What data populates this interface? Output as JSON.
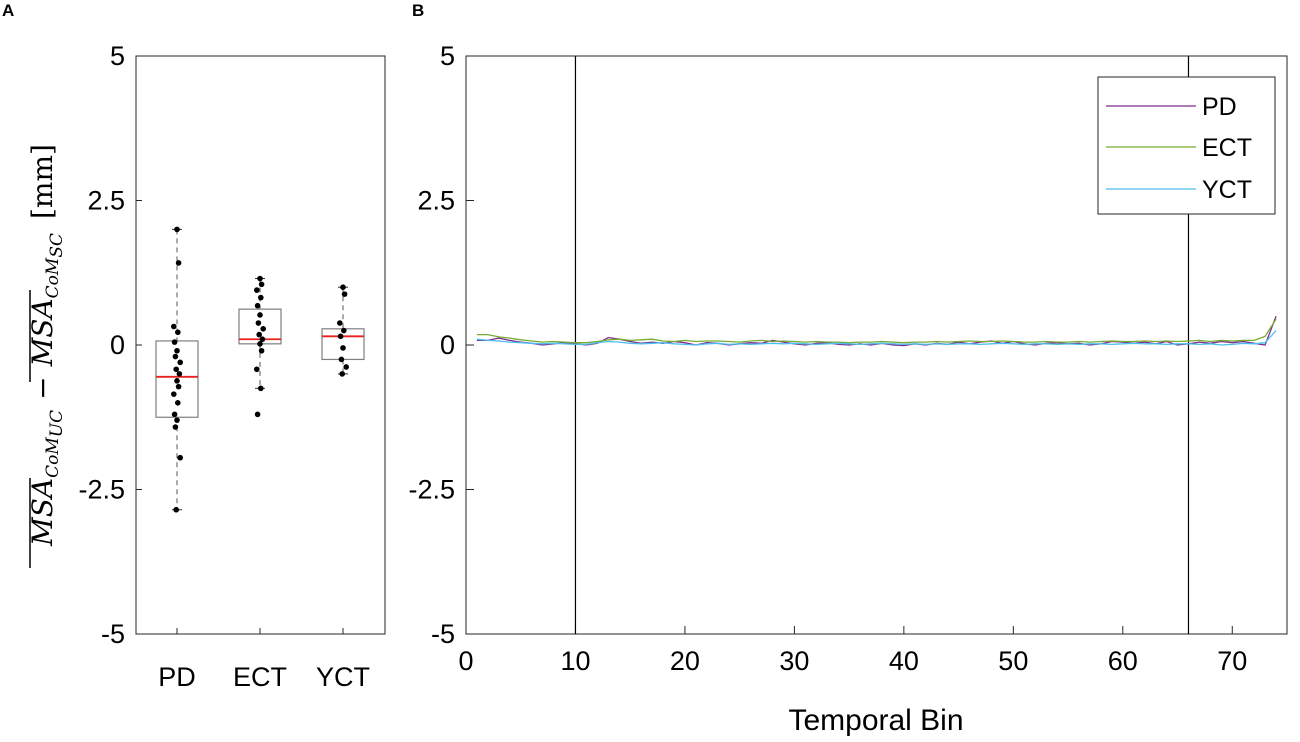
{
  "chart_data": [
    {
      "panel": "A",
      "type": "box",
      "categories": [
        "PD",
        "ECT",
        "YCT"
      ],
      "ylim": [
        -5,
        5
      ],
      "yticks": [
        -5,
        -2.5,
        0,
        2.5,
        5
      ],
      "ytick_labels": [
        "-5",
        "-2.5",
        "0",
        "2.5",
        "5"
      ],
      "ylabel": {
        "term1": "MSA",
        "sub1": "CoM",
        "subsub1": "UC",
        "minus": "−",
        "term2": "MSA",
        "sub2": "CoM",
        "subsub2": "SC",
        "unit": "[mm]"
      },
      "boxes": [
        {
          "name": "PD",
          "q1": -1.25,
          "median": -0.55,
          "q3": 0.07,
          "whisker_low": -2.85,
          "whisker_high": 2.0,
          "points": [
            2.0,
            1.42,
            0.32,
            0.22,
            0.05,
            -0.1,
            -0.2,
            -0.3,
            -0.42,
            -0.5,
            -0.62,
            -0.72,
            -0.85,
            -1.0,
            -1.2,
            -1.3,
            -1.42,
            -1.95,
            -2.85
          ]
        },
        {
          "name": "ECT",
          "q1": 0.02,
          "median": 0.1,
          "q3": 0.62,
          "whisker_low": -0.75,
          "whisker_high": 1.15,
          "points": [
            1.15,
            1.05,
            0.95,
            0.82,
            0.68,
            0.52,
            0.38,
            0.28,
            0.18,
            0.1,
            0.02,
            -0.1,
            -0.42,
            -0.75,
            -1.2
          ]
        },
        {
          "name": "YCT",
          "q1": -0.25,
          "median": 0.15,
          "q3": 0.28,
          "whisker_low": -0.5,
          "whisker_high": 1.0,
          "points": [
            1.0,
            0.88,
            0.38,
            0.25,
            0.15,
            -0.05,
            -0.25,
            -0.38,
            -0.5
          ]
        }
      ],
      "colors": {
        "box": "#7f7f7f",
        "median": "#e8211c",
        "points": "#000000",
        "whisker": "#555555"
      }
    },
    {
      "panel": "B",
      "type": "line",
      "xlabel": "Temporal Bin",
      "xlim": [
        0,
        75
      ],
      "ylim": [
        -5,
        5
      ],
      "xticks": [
        0,
        10,
        20,
        30,
        40,
        50,
        60,
        70
      ],
      "xtick_labels": [
        "0",
        "10",
        "20",
        "30",
        "40",
        "50",
        "60",
        "70"
      ],
      "yticks": [
        -5,
        -2.5,
        0,
        2.5,
        5
      ],
      "ytick_labels": [
        "-5",
        "-2.5",
        "0",
        "2.5",
        "5"
      ],
      "vlines": [
        10,
        66
      ],
      "legend_position": "top-right",
      "series": [
        {
          "name": "PD",
          "color": "#7e2f8e",
          "x": [
            1,
            2,
            3,
            4,
            5,
            6,
            7,
            8,
            9,
            10,
            11,
            12,
            13,
            14,
            15,
            16,
            17,
            18,
            19,
            20,
            21,
            22,
            23,
            24,
            25,
            26,
            27,
            28,
            29,
            30,
            31,
            32,
            33,
            34,
            35,
            36,
            37,
            38,
            39,
            40,
            41,
            42,
            43,
            44,
            45,
            46,
            47,
            48,
            49,
            50,
            51,
            52,
            53,
            54,
            55,
            56,
            57,
            58,
            59,
            60,
            61,
            62,
            63,
            64,
            65,
            66,
            67,
            68,
            69,
            70,
            71,
            72,
            73,
            74
          ],
          "y": [
            0.08,
            0.08,
            0.12,
            0.08,
            0.05,
            0.03,
            0.0,
            0.02,
            0.04,
            0.02,
            0.0,
            0.03,
            0.13,
            0.1,
            0.06,
            0.03,
            0.05,
            0.03,
            0.06,
            0.04,
            0.0,
            0.04,
            0.03,
            0.0,
            0.02,
            0.04,
            0.03,
            0.08,
            0.05,
            0.02,
            0.0,
            0.03,
            0.04,
            0.01,
            0.0,
            0.02,
            0.0,
            0.03,
            0.0,
            -0.01,
            0.02,
            0.0,
            0.03,
            0.01,
            0.05,
            0.02,
            0.05,
            0.07,
            0.03,
            0.06,
            0.02,
            0.0,
            0.03,
            0.04,
            0.02,
            0.03,
            0.0,
            0.02,
            0.06,
            0.05,
            0.03,
            0.05,
            0.02,
            0.06,
            0.0,
            0.02,
            0.05,
            0.03,
            0.06,
            0.04,
            0.06,
            0.03,
            0.0,
            0.5
          ]
        },
        {
          "name": "ECT",
          "color": "#77ac30",
          "x": [
            1,
            2,
            3,
            4,
            5,
            6,
            7,
            8,
            9,
            10,
            11,
            12,
            13,
            14,
            15,
            16,
            17,
            18,
            19,
            20,
            21,
            22,
            23,
            24,
            25,
            26,
            27,
            28,
            29,
            30,
            31,
            32,
            33,
            34,
            35,
            36,
            37,
            38,
            39,
            40,
            41,
            42,
            43,
            44,
            45,
            46,
            47,
            48,
            49,
            50,
            51,
            52,
            53,
            54,
            55,
            56,
            57,
            58,
            59,
            60,
            61,
            62,
            63,
            64,
            65,
            66,
            67,
            68,
            69,
            70,
            71,
            72,
            73,
            74
          ],
          "y": [
            0.18,
            0.18,
            0.14,
            0.12,
            0.09,
            0.07,
            0.05,
            0.06,
            0.05,
            0.04,
            0.04,
            0.06,
            0.09,
            0.1,
            0.08,
            0.09,
            0.1,
            0.07,
            0.06,
            0.08,
            0.06,
            0.07,
            0.07,
            0.06,
            0.05,
            0.07,
            0.08,
            0.06,
            0.07,
            0.06,
            0.05,
            0.06,
            0.05,
            0.05,
            0.04,
            0.05,
            0.05,
            0.06,
            0.05,
            0.04,
            0.05,
            0.05,
            0.06,
            0.05,
            0.06,
            0.07,
            0.06,
            0.06,
            0.07,
            0.06,
            0.05,
            0.05,
            0.06,
            0.05,
            0.05,
            0.06,
            0.05,
            0.06,
            0.07,
            0.06,
            0.06,
            0.07,
            0.06,
            0.07,
            0.06,
            0.07,
            0.08,
            0.06,
            0.08,
            0.07,
            0.08,
            0.08,
            0.15,
            0.45
          ]
        },
        {
          "name": "YCT",
          "color": "#4dbeee",
          "x": [
            1,
            2,
            3,
            4,
            5,
            6,
            7,
            8,
            9,
            10,
            11,
            12,
            13,
            14,
            15,
            16,
            17,
            18,
            19,
            20,
            21,
            22,
            23,
            24,
            25,
            26,
            27,
            28,
            29,
            30,
            31,
            32,
            33,
            34,
            35,
            36,
            37,
            38,
            39,
            40,
            41,
            42,
            43,
            44,
            45,
            46,
            47,
            48,
            49,
            50,
            51,
            52,
            53,
            54,
            55,
            56,
            57,
            58,
            59,
            60,
            61,
            62,
            63,
            64,
            65,
            66,
            67,
            68,
            69,
            70,
            71,
            72,
            73,
            74
          ],
          "y": [
            0.1,
            0.08,
            0.07,
            0.05,
            0.04,
            0.03,
            0.02,
            0.03,
            0.02,
            0.01,
            0.01,
            0.04,
            0.06,
            0.05,
            0.03,
            0.02,
            0.03,
            0.04,
            0.02,
            0.01,
            0.0,
            0.02,
            0.03,
            0.01,
            0.02,
            0.01,
            0.02,
            0.03,
            0.02,
            0.03,
            0.02,
            0.01,
            0.02,
            0.03,
            0.02,
            0.01,
            0.02,
            0.03,
            0.02,
            0.01,
            0.02,
            0.01,
            0.02,
            0.01,
            0.02,
            0.02,
            0.01,
            0.02,
            0.03,
            0.02,
            0.01,
            0.02,
            0.02,
            0.01,
            0.02,
            0.01,
            0.02,
            0.02,
            0.01,
            0.02,
            0.03,
            0.02,
            0.02,
            0.01,
            0.02,
            0.02,
            0.01,
            0.02,
            0.0,
            0.01,
            0.03,
            0.02,
            0.04,
            0.25
          ]
        }
      ]
    }
  ],
  "labels": {
    "panel_a": "A",
    "panel_b": "B"
  }
}
